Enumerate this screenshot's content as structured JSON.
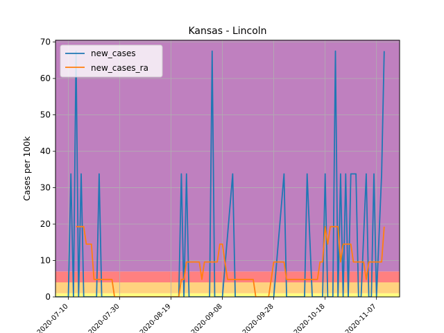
{
  "chart_data": {
    "type": "line",
    "title": "Kansas - Lincoln",
    "xlabel": "",
    "ylabel": "Cases per 100k",
    "x_tick_labels": [
      "2020-07-10",
      "2020-07-30",
      "2020-08-19",
      "2020-09-08",
      "2020-09-28",
      "2020-10-18",
      "2020-11-07"
    ],
    "x_range": [
      "2020-07-05",
      "2020-11-16"
    ],
    "y_ticks": [
      0,
      10,
      20,
      30,
      40,
      50,
      60,
      70
    ],
    "ylim": [
      0,
      70.5
    ],
    "grid": true,
    "legend": {
      "position": "top-left",
      "entries": [
        "new_cases",
        "new_cases_ra"
      ]
    },
    "background_bands": [
      {
        "from": 0,
        "to": 1,
        "color": "#ffff80"
      },
      {
        "from": 1,
        "to": 4,
        "color": "#ffd27f"
      },
      {
        "from": 4,
        "to": 7,
        "color": "#ff8080"
      },
      {
        "from": 7,
        "to": 70.5,
        "color": "#bf80bf"
      }
    ],
    "series": [
      {
        "name": "new_cases",
        "color": "#1f77b4",
        "x": [
          "2020-07-05",
          "2020-07-09",
          "2020-07-10",
          "2020-07-11",
          "2020-07-12",
          "2020-07-13",
          "2020-07-14",
          "2020-07-15",
          "2020-07-16",
          "2020-07-17",
          "2020-07-18",
          "2020-07-19",
          "2020-07-20",
          "2020-07-21",
          "2020-07-22",
          "2020-07-23",
          "2020-08-22",
          "2020-08-23",
          "2020-08-24",
          "2020-08-25",
          "2020-08-26",
          "2020-08-27",
          "2020-09-01",
          "2020-09-02",
          "2020-09-03",
          "2020-09-04",
          "2020-09-05",
          "2020-09-06",
          "2020-09-07",
          "2020-09-08",
          "2020-09-12",
          "2020-09-13",
          "2020-09-14",
          "2020-09-26",
          "2020-09-27",
          "2020-09-28",
          "2020-10-02",
          "2020-10-03",
          "2020-10-04",
          "2020-10-09",
          "2020-10-10",
          "2020-10-11",
          "2020-10-13",
          "2020-10-14",
          "2020-10-15",
          "2020-10-16",
          "2020-10-17",
          "2020-10-18",
          "2020-10-19",
          "2020-10-20",
          "2020-10-21",
          "2020-10-22",
          "2020-10-23",
          "2020-10-24",
          "2020-10-25",
          "2020-10-26",
          "2020-10-27",
          "2020-10-28",
          "2020-10-30",
          "2020-10-31",
          "2020-11-01",
          "2020-11-03",
          "2020-11-04",
          "2020-11-05",
          "2020-11-06",
          "2020-11-07",
          "2020-11-09",
          "2020-11-10"
        ],
        "y": [
          0,
          0,
          0,
          33.8,
          0,
          67.5,
          0,
          33.8,
          0,
          0,
          0,
          0,
          0,
          0,
          33.8,
          0,
          0,
          33.8,
          0,
          33.8,
          0,
          0,
          0,
          0,
          0,
          67.5,
          0,
          0,
          0,
          0,
          33.8,
          0,
          0,
          0,
          0,
          0,
          33.8,
          0,
          0,
          0,
          0,
          33.8,
          0,
          0,
          0,
          0,
          0,
          33.8,
          0,
          0,
          0,
          67.5,
          0,
          33.8,
          0,
          33.8,
          0,
          33.8,
          33.8,
          0,
          0,
          33.8,
          0,
          0,
          33.8,
          0,
          33.8,
          67.5
        ]
      },
      {
        "name": "new_cases_ra",
        "color": "#ff7f0e",
        "x": [
          "2020-07-13",
          "2020-07-16",
          "2020-07-17",
          "2020-07-19",
          "2020-07-20",
          "2020-07-27",
          "2020-07-28",
          "2020-08-22",
          "2020-08-23",
          "2020-08-24",
          "2020-08-25",
          "2020-08-30",
          "2020-08-31",
          "2020-09-01",
          "2020-09-06",
          "2020-09-07",
          "2020-09-08",
          "2020-09-09",
          "2020-09-10",
          "2020-09-11",
          "2020-09-20",
          "2020-09-21",
          "2020-09-26",
          "2020-09-27",
          "2020-09-28",
          "2020-10-02",
          "2020-10-03",
          "2020-10-04",
          "2020-10-12",
          "2020-10-13",
          "2020-10-15",
          "2020-10-16",
          "2020-10-17",
          "2020-10-18",
          "2020-10-19",
          "2020-10-20",
          "2020-10-23",
          "2020-10-24",
          "2020-10-25",
          "2020-10-28",
          "2020-10-29",
          "2020-11-02",
          "2020-11-03",
          "2020-11-04",
          "2020-11-09",
          "2020-11-10"
        ],
        "y": [
          19.3,
          19.3,
          14.5,
          14.5,
          4.8,
          4.8,
          0,
          0,
          4.8,
          4.8,
          9.6,
          9.6,
          4.8,
          9.6,
          9.6,
          14.5,
          14.5,
          9.6,
          4.8,
          4.8,
          4.8,
          0,
          0,
          4.8,
          9.6,
          9.6,
          4.8,
          4.8,
          4.8,
          4.8,
          4.8,
          9.6,
          9.6,
          19.3,
          14.5,
          19.3,
          19.3,
          9.6,
          14.5,
          14.5,
          9.6,
          9.6,
          4.8,
          9.6,
          9.6,
          19.3
        ]
      }
    ]
  }
}
